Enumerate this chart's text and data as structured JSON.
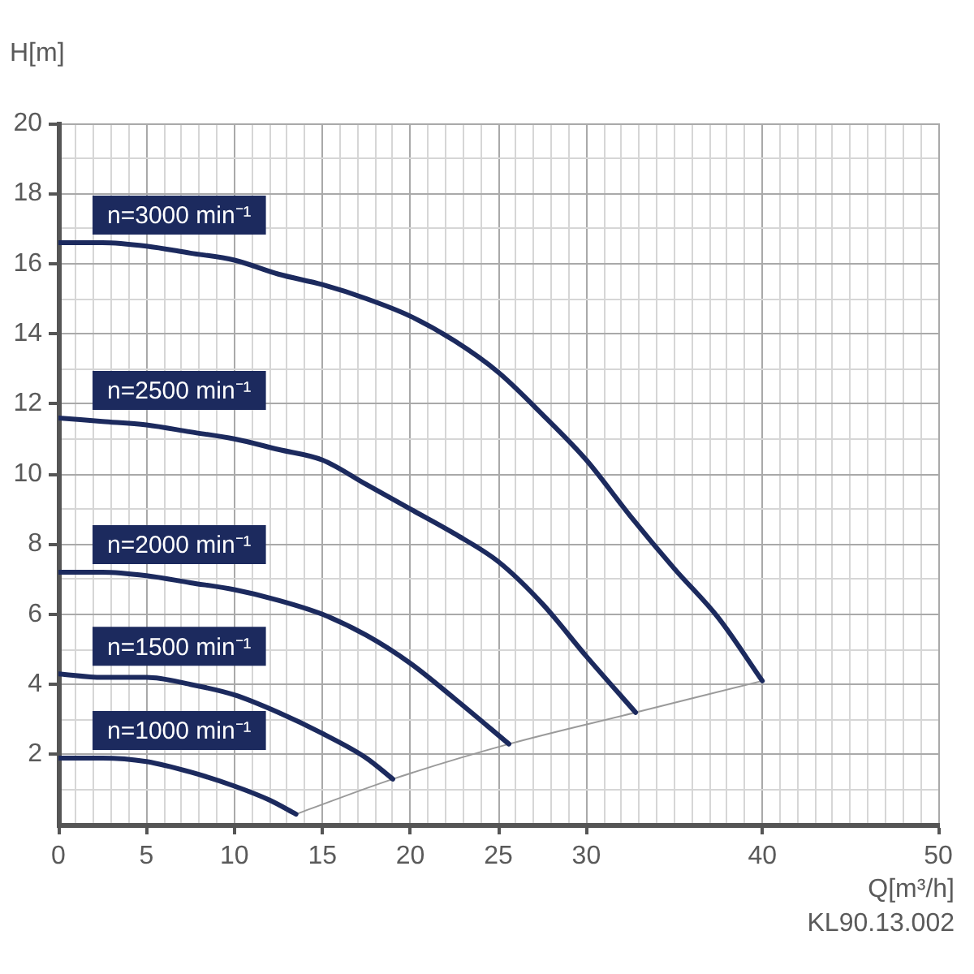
{
  "chart_data": {
    "type": "line",
    "xlabel": "Q[m³/h]",
    "ylabel": "H[m]",
    "annotations": [
      "KL90.13.002"
    ],
    "xlim": [
      0,
      50
    ],
    "ylim": [
      0,
      20
    ],
    "xticks": [
      0,
      {
        "value": 1,
        "label": null
      },
      {
        "value": 2,
        "label": null
      },
      {
        "value": 3,
        "label": null
      },
      {
        "value": 4,
        "label": null
      },
      5,
      {
        "value": 6,
        "label": null
      },
      {
        "value": 7,
        "label": null
      },
      {
        "value": 8,
        "label": null
      },
      {
        "value": 9,
        "label": null
      },
      10,
      {
        "value": 11,
        "label": null
      },
      {
        "value": 12,
        "label": null
      },
      {
        "value": 13,
        "label": null
      },
      {
        "value": 14,
        "label": null
      },
      15,
      {
        "value": 16,
        "label": null
      },
      {
        "value": 17,
        "label": null
      },
      {
        "value": 18,
        "label": null
      },
      {
        "value": 19,
        "label": null
      },
      20,
      {
        "value": 21,
        "label": null
      },
      {
        "value": 22,
        "label": null
      },
      {
        "value": 23,
        "label": null
      },
      {
        "value": 24,
        "label": null
      },
      25,
      {
        "value": 26,
        "label": null
      },
      {
        "value": 27,
        "label": null
      },
      {
        "value": 28,
        "label": null
      },
      {
        "value": 29,
        "label": null
      },
      30,
      {
        "value": 31,
        "label": null
      },
      {
        "value": 32,
        "label": null
      },
      {
        "value": 33,
        "label": null
      },
      {
        "value": 34,
        "label": null
      },
      {
        "value": 35,
        "label": null
      },
      {
        "value": 36,
        "label": null
      },
      {
        "value": 37,
        "label": null
      },
      {
        "value": 38,
        "label": null
      },
      {
        "value": 39,
        "label": null
      },
      40,
      {
        "value": 41,
        "label": null
      },
      {
        "value": 42,
        "label": null
      },
      {
        "value": 43,
        "label": null
      },
      {
        "value": 44,
        "label": null
      },
      {
        "value": 45,
        "label": null
      },
      {
        "value": 46,
        "label": null
      },
      {
        "value": 47,
        "label": null
      },
      {
        "value": 48,
        "label": null
      },
      {
        "value": 49,
        "label": null
      },
      50
    ],
    "yticks": [
      {
        "value": 0,
        "label": null
      },
      {
        "value": 1,
        "label": null
      },
      2,
      {
        "value": 3,
        "label": null
      },
      4,
      {
        "value": 5,
        "label": null
      },
      6,
      {
        "value": 7,
        "label": null
      },
      8,
      {
        "value": 9,
        "label": null
      },
      10,
      {
        "value": 11,
        "label": null
      },
      12,
      {
        "value": 13,
        "label": null
      },
      14,
      {
        "value": 15,
        "label": null
      },
      16,
      {
        "value": 17,
        "label": null
      },
      18,
      {
        "value": 19,
        "label": null
      },
      20
    ],
    "grid": true,
    "legend": false,
    "marker": "none",
    "line_style": "solid",
    "series": [
      {
        "name": "n=3000 min⁻¹",
        "color": "#1c2a5e",
        "x": [
          0,
          2.5,
          5,
          7.5,
          10,
          12.5,
          15,
          17.5,
          20,
          22.5,
          25,
          27.5,
          30,
          32.5,
          35,
          37.5,
          40
        ],
        "values": [
          16.6,
          16.6,
          16.5,
          16.3,
          16.1,
          15.7,
          15.4,
          15.0,
          14.5,
          13.8,
          12.9,
          11.7,
          10.4,
          8.8,
          7.3,
          5.9,
          4.1
        ]
      },
      {
        "name": "n=2500 min⁻¹",
        "color": "#1c2a5e",
        "x": [
          0,
          2.5,
          5,
          7.5,
          10,
          12.5,
          15,
          17.5,
          20,
          22.5,
          25,
          27.5,
          30,
          32.8
        ],
        "values": [
          11.6,
          11.5,
          11.4,
          11.2,
          11.0,
          10.7,
          10.4,
          9.7,
          9.0,
          8.3,
          7.5,
          6.3,
          4.8,
          3.2
        ]
      },
      {
        "name": "n=2000 min⁻¹",
        "color": "#1c2a5e",
        "x": [
          0,
          2.5,
          5,
          7.5,
          10,
          12.5,
          15,
          17.5,
          20,
          22.5,
          25.6
        ],
        "values": [
          7.2,
          7.2,
          7.1,
          6.9,
          6.7,
          6.4,
          6.0,
          5.4,
          4.6,
          3.6,
          2.3
        ]
      },
      {
        "name": "n=1500 min⁻¹",
        "color": "#1c2a5e",
        "x": [
          0,
          2.5,
          5,
          7.5,
          10,
          12.5,
          15,
          17.5,
          19
        ],
        "values": [
          4.3,
          4.2,
          4.2,
          4.0,
          3.7,
          3.2,
          2.6,
          1.9,
          1.3
        ]
      },
      {
        "name": "n=1000 min⁻¹",
        "color": "#1c2a5e",
        "x": [
          0,
          2.5,
          5,
          7.5,
          10,
          12,
          13.5
        ],
        "values": [
          1.9,
          1.9,
          1.8,
          1.5,
          1.1,
          0.7,
          0.3
        ]
      },
      {
        "color": "#9a9a9a",
        "x": [
          13.5,
          19,
          25.6,
          32.8,
          40
        ],
        "values": [
          0.3,
          1.3,
          2.3,
          3.2,
          4.1
        ]
      }
    ]
  }
}
